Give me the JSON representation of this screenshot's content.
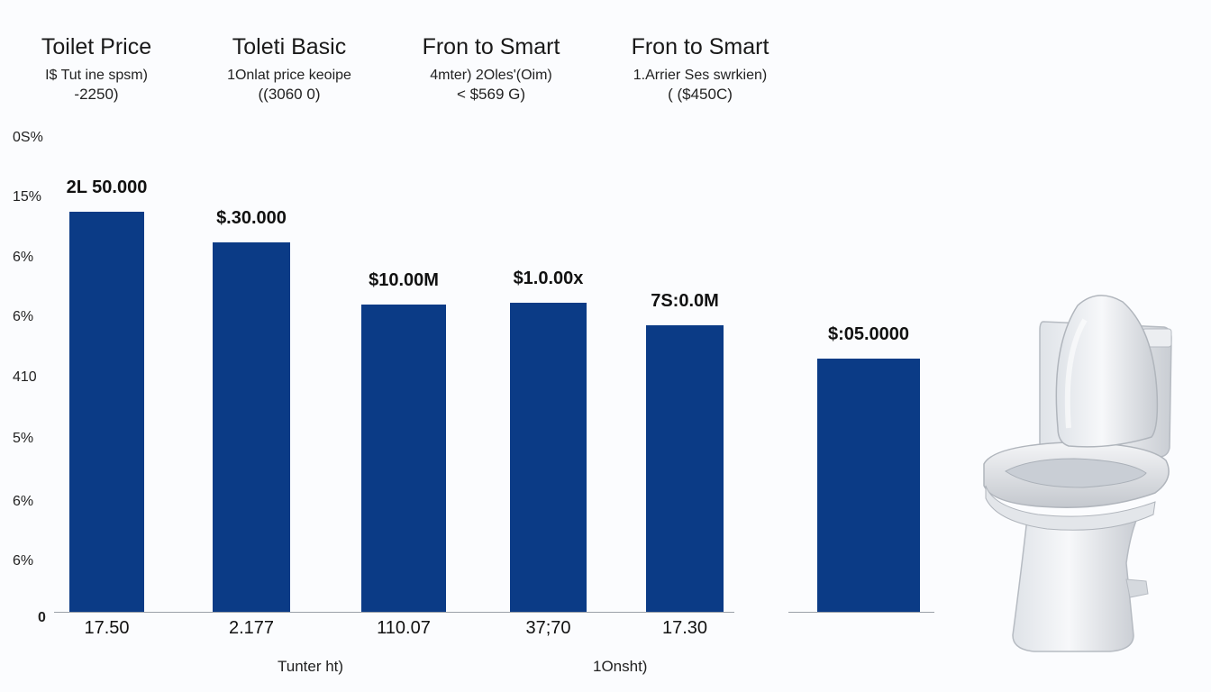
{
  "chart_data": {
    "type": "bar",
    "headers": [
      {
        "title": "Toilet Price",
        "subtitle": "I$ Tut ine spsm)",
        "price": "-2250)"
      },
      {
        "title": "Toleti Basic",
        "subtitle": "1Onlat price keoipe",
        "price": "((3060 0)"
      },
      {
        "title": "Fron to Smart",
        "subtitle": "4mter) 2Oles'(Oim)",
        "price": "< $569 G)"
      },
      {
        "title": "Fron to Smart",
        "subtitle": "1.Arrier Ses swrkien)",
        "price": "( ($450C)"
      }
    ],
    "y_tick_labels": [
      "0S%",
      "15%",
      "6%",
      "6%",
      "410",
      "5%",
      "6%",
      "6%",
      "0"
    ],
    "categories": [
      "17.50",
      "2.177",
      "110.07",
      "37;70",
      "17.30",
      ""
    ],
    "values": [
      78,
      72,
      60,
      60.3,
      55.8,
      49.4
    ],
    "value_labels": [
      "2L 50.000",
      "$.30.000",
      "$10.00M",
      "$1.0.00x",
      "7S:0.0M",
      "$:05.0000"
    ],
    "ylim": [
      0,
      100
    ],
    "x_axis_titles": [
      "Tunter ht)",
      "1Onsht)"
    ],
    "bar_color": "#0b3b86"
  },
  "image": {
    "subject": "toilet-photo"
  }
}
